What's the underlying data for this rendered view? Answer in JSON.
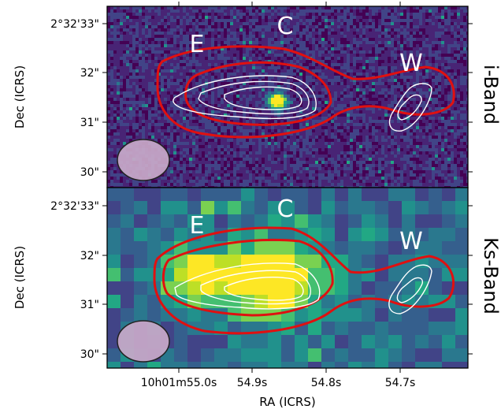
{
  "figure": {
    "x_axis_label": "RA (ICRS)",
    "y_axis_label": "Dec (ICRS)",
    "ra_tick_labels": [
      "10h01m55.0s",
      "54.9s",
      "54.8s",
      "54.7s"
    ],
    "dec_tick_labels": [
      "2°32'33\"",
      "32\"",
      "31\"",
      "30\""
    ]
  },
  "panels": [
    {
      "band_label": "i-Band",
      "source_labels": [
        "E",
        "C",
        "W"
      ],
      "background_colormap": "viridis",
      "noise_style": "fine pixel noise",
      "contour_colors": {
        "outer": "#e01010",
        "inner": "#ffffff"
      },
      "beam_color": "#c9a9c9"
    },
    {
      "band_label": "Ks-Band",
      "source_labels": [
        "E",
        "C",
        "W"
      ],
      "background_colormap": "viridis",
      "noise_style": "coarse pixel blocks",
      "contour_colors": {
        "outer": "#e01010",
        "inner": "#ffffff"
      },
      "beam_color": "#c9a9c9"
    }
  ]
}
